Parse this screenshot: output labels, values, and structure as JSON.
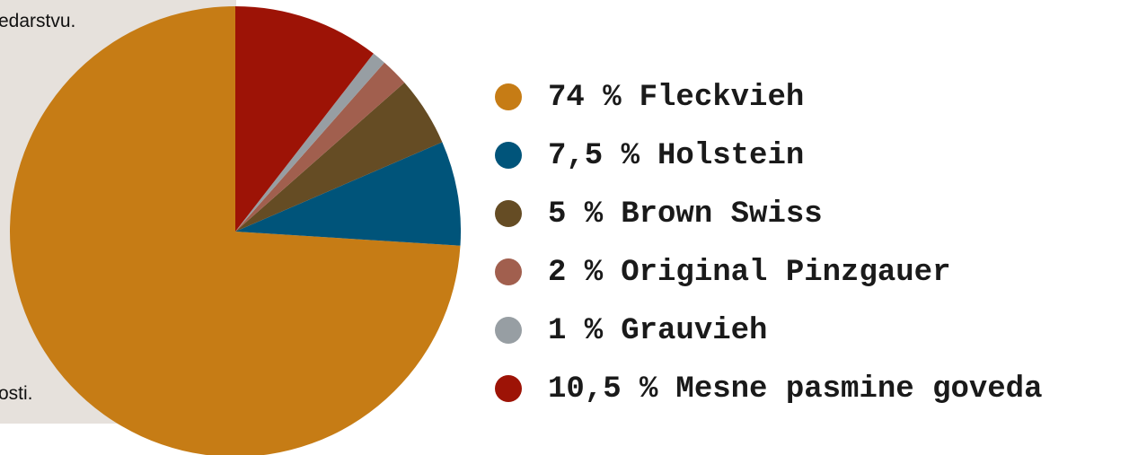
{
  "side_text": [
    "edarstvu.",
    "osti."
  ],
  "chart_data": {
    "type": "pie",
    "categories": [
      "Fleckvieh",
      "Holstein",
      "Brown Swiss",
      "Original Pinzgauer",
      "Grauvieh",
      "Mesne pasmine goveda"
    ],
    "values": [
      74,
      7.5,
      5,
      2,
      1,
      10.5
    ],
    "value_labels": [
      "74 %",
      "7,5 %",
      "5 %",
      "2 %",
      "1 %",
      "10,5 %"
    ],
    "colors": [
      "#c67c15",
      "#00547a",
      "#654c24",
      "#a15f4e",
      "#979ea3",
      "#9d1306"
    ],
    "direction": "counterclockwise",
    "start": "top",
    "legend": "right"
  }
}
